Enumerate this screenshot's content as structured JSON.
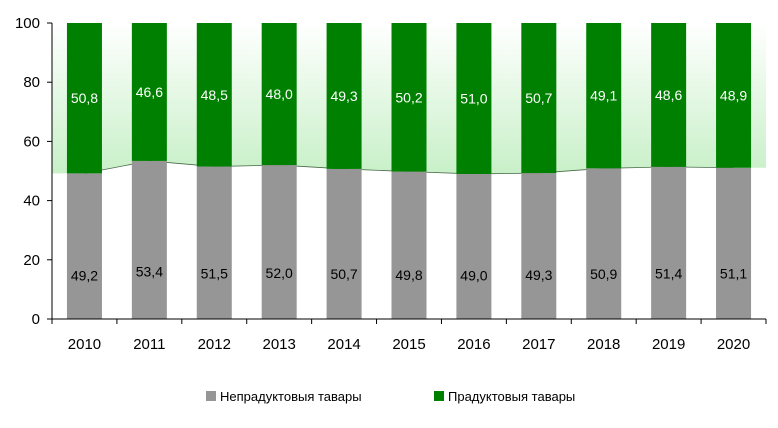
{
  "chart_data": {
    "type": "bar",
    "stacked": true,
    "categories": [
      "2010",
      "2011",
      "2012",
      "2013",
      "2014",
      "2015",
      "2016",
      "2017",
      "2018",
      "2019",
      "2020"
    ],
    "series": [
      {
        "name": "Непрадуктовыя тавары",
        "color": "#969696",
        "values": [
          49.2,
          53.4,
          51.5,
          52.0,
          50.7,
          49.8,
          49.0,
          49.3,
          50.9,
          51.4,
          51.1
        ],
        "labels": [
          "49,2",
          "53,4",
          "51,5",
          "52,0",
          "50,7",
          "49,8",
          "49,0",
          "49,3",
          "50,9",
          "51,4",
          "51,1"
        ]
      },
      {
        "name": "Прадуктовыя тавары",
        "color": "#008000",
        "values": [
          50.8,
          46.6,
          48.5,
          48.0,
          49.3,
          50.2,
          51.0,
          50.7,
          49.1,
          48.6,
          48.9
        ],
        "labels": [
          "50,8",
          "46,6",
          "48,5",
          "48,0",
          "49,3",
          "50,2",
          "51,0",
          "50,7",
          "49,1",
          "48,6",
          "48,9"
        ]
      }
    ],
    "ylim": [
      0,
      100
    ],
    "yticks": [
      "0",
      "20",
      "40",
      "60",
      "80",
      "100"
    ],
    "ytick_values": [
      0,
      20,
      40,
      60,
      80,
      100
    ],
    "legend_position": "bottom",
    "background_fill": "green gradient area between series boundary and top"
  }
}
